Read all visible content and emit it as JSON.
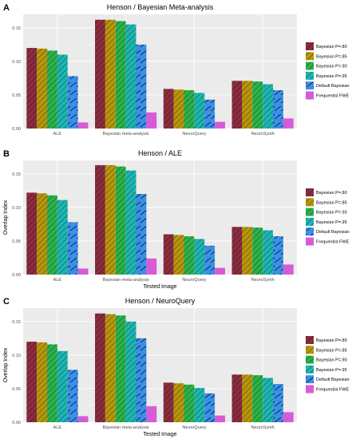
{
  "series_style": {
    "colors": [
      "#8b2d3f",
      "#b8960c",
      "#2bb24c",
      "#1fb5b0",
      "#3a8fe8",
      "#d65bd6"
    ],
    "patterns": [
      "stripe",
      "stripe",
      "stripe",
      "stripe",
      "pattern",
      "none"
    ]
  },
  "chart_data": [
    {
      "type": "bar",
      "panel": "A",
      "title": "Henson / Bayesian Meta-analysis",
      "xlabel": "",
      "ylabel": "",
      "ylim": [
        0,
        0.17
      ],
      "yticks": [
        0.0,
        0.05,
        0.1,
        0.15
      ],
      "ytick_labels": [
        "0.00",
        "0.05",
        "0.10",
        "0.15"
      ],
      "categories": [
        "ALE",
        "Bayesian meta-analysis",
        "NeuroQuery",
        "NeuroSynth"
      ],
      "legend_placement": "right",
      "grid": true,
      "series": [
        {
          "name": "Bayesian P=.80",
          "values": [
            0.12,
            0.162,
            0.059,
            0.071
          ]
        },
        {
          "name": "Bayesian P=.85",
          "values": [
            0.119,
            0.162,
            0.058,
            0.071
          ]
        },
        {
          "name": "Bayesian P=.90",
          "values": [
            0.116,
            0.16,
            0.057,
            0.07
          ]
        },
        {
          "name": "Bayesian P=.95",
          "values": [
            0.11,
            0.155,
            0.053,
            0.066
          ]
        },
        {
          "name": "Default Bayesian",
          "values": [
            0.078,
            0.125,
            0.043,
            0.057
          ]
        },
        {
          "name": "Frequentist FWE",
          "values": [
            0.009,
            0.024,
            0.01,
            0.015
          ]
        }
      ]
    },
    {
      "type": "bar",
      "panel": "B",
      "title": "Henson / ALE",
      "xlabel": "Tested Image",
      "ylabel": "Overlap Index",
      "ylim": [
        0,
        0.17
      ],
      "yticks": [
        0.0,
        0.05,
        0.1,
        0.15
      ],
      "ytick_labels": [
        "0.00",
        "0.05",
        "0.10",
        "0.15"
      ],
      "categories": [
        "ALE",
        "Bayesian meta-analysis",
        "NeuroQuery",
        "NeuroSynth"
      ],
      "legend_placement": "right",
      "grid": true,
      "series": [
        {
          "name": "Bayesian P=.80",
          "values": [
            0.122,
            0.163,
            0.06,
            0.071
          ]
        },
        {
          "name": "Bayesian P=.85",
          "values": [
            0.121,
            0.163,
            0.059,
            0.071
          ]
        },
        {
          "name": "Bayesian P=.90",
          "values": [
            0.118,
            0.161,
            0.057,
            0.07
          ]
        },
        {
          "name": "Bayesian P=.95",
          "values": [
            0.111,
            0.155,
            0.053,
            0.066
          ]
        },
        {
          "name": "Default Bayesian",
          "values": [
            0.078,
            0.12,
            0.043,
            0.057
          ]
        },
        {
          "name": "Frequentist FWE",
          "values": [
            0.009,
            0.024,
            0.01,
            0.015
          ]
        }
      ]
    },
    {
      "type": "bar",
      "panel": "C",
      "title": "Henson / NeuroQuery",
      "xlabel": "Tested Image",
      "ylabel": "Overlap Index",
      "ylim": [
        0,
        0.17
      ],
      "yticks": [
        0.0,
        0.05,
        0.1,
        0.15
      ],
      "ytick_labels": [
        "0.00",
        "0.05",
        "0.10",
        "0.15"
      ],
      "categories": [
        "ALE",
        "Bayesian meta-analysis",
        "NeuroQuery",
        "NeuroSynth"
      ],
      "legend_placement": "right",
      "grid": true,
      "series": [
        {
          "name": "Bayesian P=.80",
          "values": [
            0.12,
            0.162,
            0.059,
            0.071
          ]
        },
        {
          "name": "Bayesian P=.85",
          "values": [
            0.119,
            0.161,
            0.058,
            0.071
          ]
        },
        {
          "name": "Bayesian P=.90",
          "values": [
            0.116,
            0.159,
            0.056,
            0.07
          ]
        },
        {
          "name": "Bayesian P=.95",
          "values": [
            0.106,
            0.15,
            0.051,
            0.066
          ]
        },
        {
          "name": "Default Bayesian",
          "values": [
            0.078,
            0.125,
            0.043,
            0.057
          ]
        },
        {
          "name": "Frequentist FWE",
          "values": [
            0.009,
            0.024,
            0.01,
            0.015
          ]
        }
      ]
    }
  ]
}
